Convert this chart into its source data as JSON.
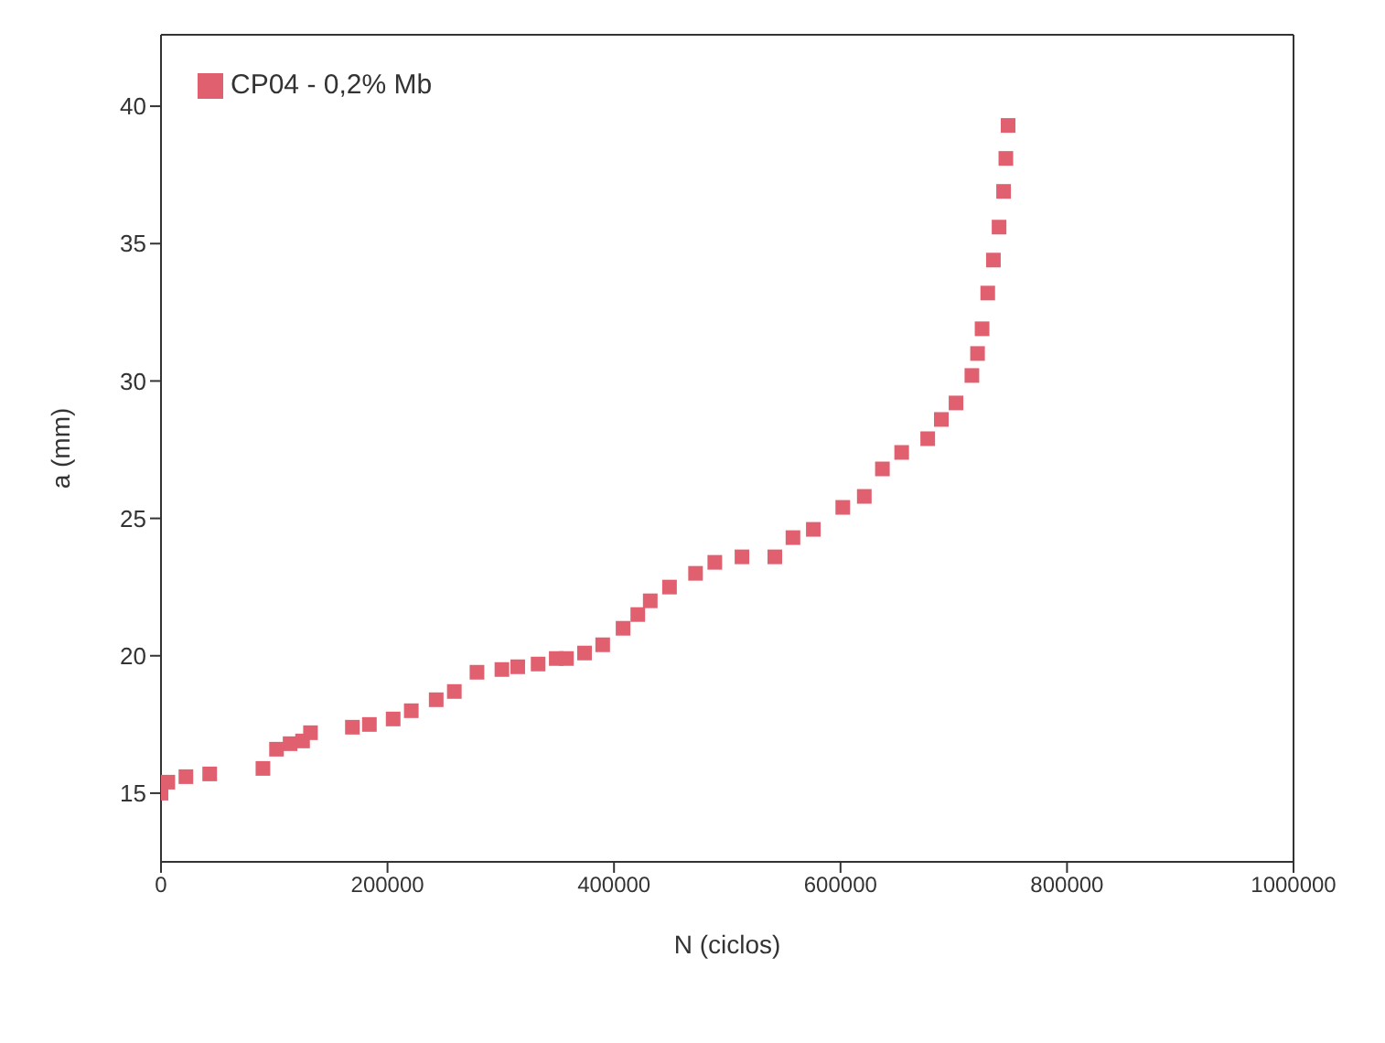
{
  "chart_data": {
    "type": "scatter",
    "xlabel": "N (ciclos)",
    "ylabel": "a (mm)",
    "x": [
      0,
      6000,
      22000,
      43000,
      90000,
      102000,
      114000,
      125000,
      132000,
      169000,
      184000,
      205000,
      221000,
      243000,
      259000,
      279000,
      301000,
      315000,
      333000,
      349000,
      358000,
      374000,
      390000,
      408000,
      421000,
      432000,
      449000,
      472000,
      489000,
      513000,
      542000,
      558000,
      576000,
      602000,
      621000,
      637000,
      654000,
      677000,
      689000,
      702000,
      716000,
      721000,
      725000,
      730000,
      735000,
      740000,
      744000,
      746000,
      748000
    ],
    "series": [
      {
        "name": "CP04 - 0,2% Mb",
        "color": "#e06070",
        "values": [
          15.0,
          15.4,
          15.6,
          15.7,
          15.9,
          16.6,
          16.8,
          16.9,
          17.2,
          17.4,
          17.5,
          17.7,
          18.0,
          18.4,
          18.7,
          19.4,
          19.5,
          19.6,
          19.7,
          19.9,
          19.9,
          20.1,
          20.4,
          21.0,
          21.5,
          22.0,
          22.5,
          23.0,
          23.4,
          23.6,
          23.6,
          24.3,
          24.6,
          25.4,
          25.8,
          26.8,
          27.4,
          27.9,
          28.6,
          29.2,
          30.2,
          31.0,
          31.9,
          33.2,
          34.4,
          35.6,
          36.9,
          38.1,
          39.3
        ]
      }
    ],
    "xlim": [
      0,
      1000000
    ],
    "xticks": [
      0,
      200000,
      400000,
      600000,
      800000,
      1000000
    ],
    "ylim": [
      12.5,
      42.6
    ],
    "yticks": [
      15,
      20,
      25,
      30,
      35,
      40
    ],
    "marker": "square",
    "legend": "top left",
    "grid": false
  }
}
